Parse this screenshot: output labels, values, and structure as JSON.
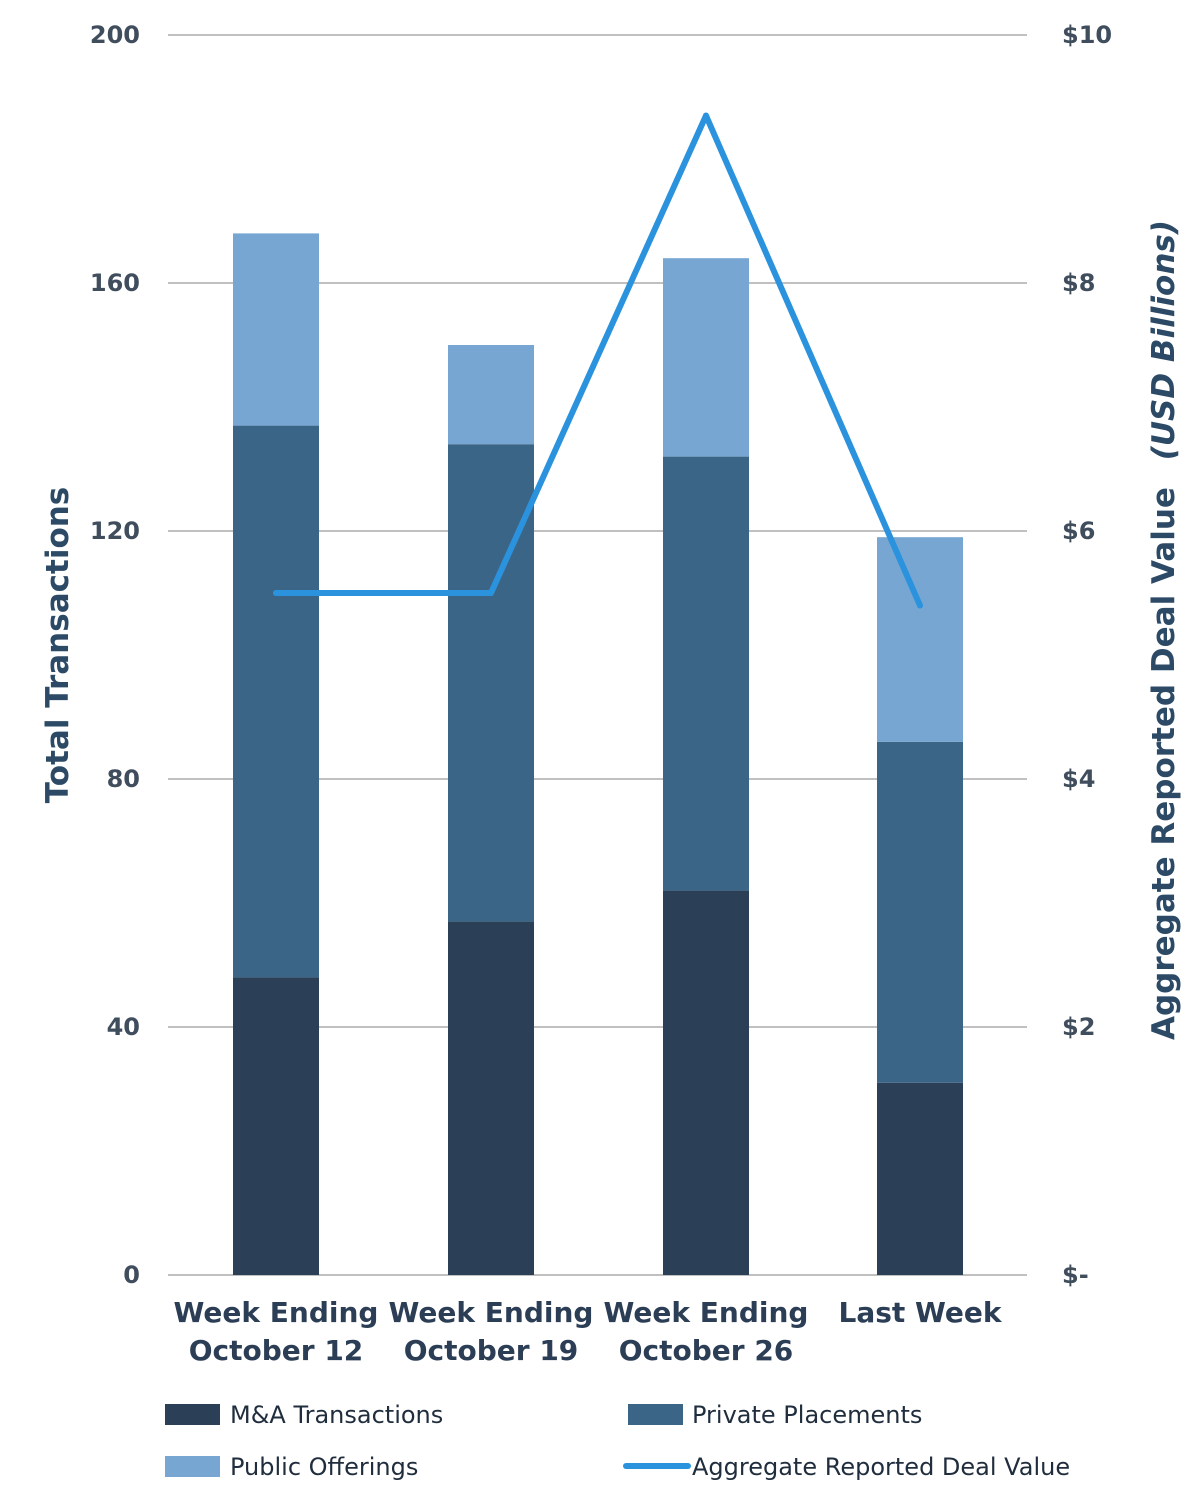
{
  "colors": {
    "ma": "#2b3f56",
    "private": "#3b6587",
    "public": "#76a6d1",
    "line": "#2b93dd",
    "grid": "#9a9a9a",
    "tick": "#3f4d5c",
    "axis_title": "#2c4a66"
  },
  "chart_data": {
    "type": "bar",
    "stacked": true,
    "categories": [
      [
        "Week Ending",
        "October 12"
      ],
      [
        "Week Ending",
        "October 19"
      ],
      [
        "Week Ending",
        "October 26"
      ],
      [
        "Last Week"
      ]
    ],
    "series": [
      {
        "name": "M&A Transactions",
        "values": [
          48,
          57,
          62,
          31
        ],
        "color_key": "ma"
      },
      {
        "name": "Private Placements",
        "values": [
          89,
          77,
          70,
          55
        ],
        "color_key": "private"
      },
      {
        "name": "Public Offerings",
        "values": [
          31,
          16,
          32,
          33
        ],
        "color_key": "public"
      }
    ],
    "line_series": {
      "name": "Aggregate Reported Deal Value",
      "axis": "right",
      "values": [
        5.5,
        5.5,
        9.35,
        5.4
      ],
      "color_key": "line"
    },
    "ylabel": "Total Transactions",
    "ylim": [
      0,
      200
    ],
    "yticks": [
      0,
      40,
      80,
      120,
      160,
      200
    ],
    "y2label_main": "Aggregate Reported Deal Value",
    "y2label_unit": "(USD Billions)",
    "y2lim": [
      0,
      10
    ],
    "y2tick_labels": [
      "$-",
      "$2",
      "$4",
      "$6",
      "$8",
      "$10"
    ],
    "grid": true,
    "legend_position": "bottom"
  },
  "legend": {
    "ma": "M&A Transactions",
    "private": "Private Placements",
    "public": "Public Offerings",
    "line": "Aggregate Reported Deal Value"
  }
}
